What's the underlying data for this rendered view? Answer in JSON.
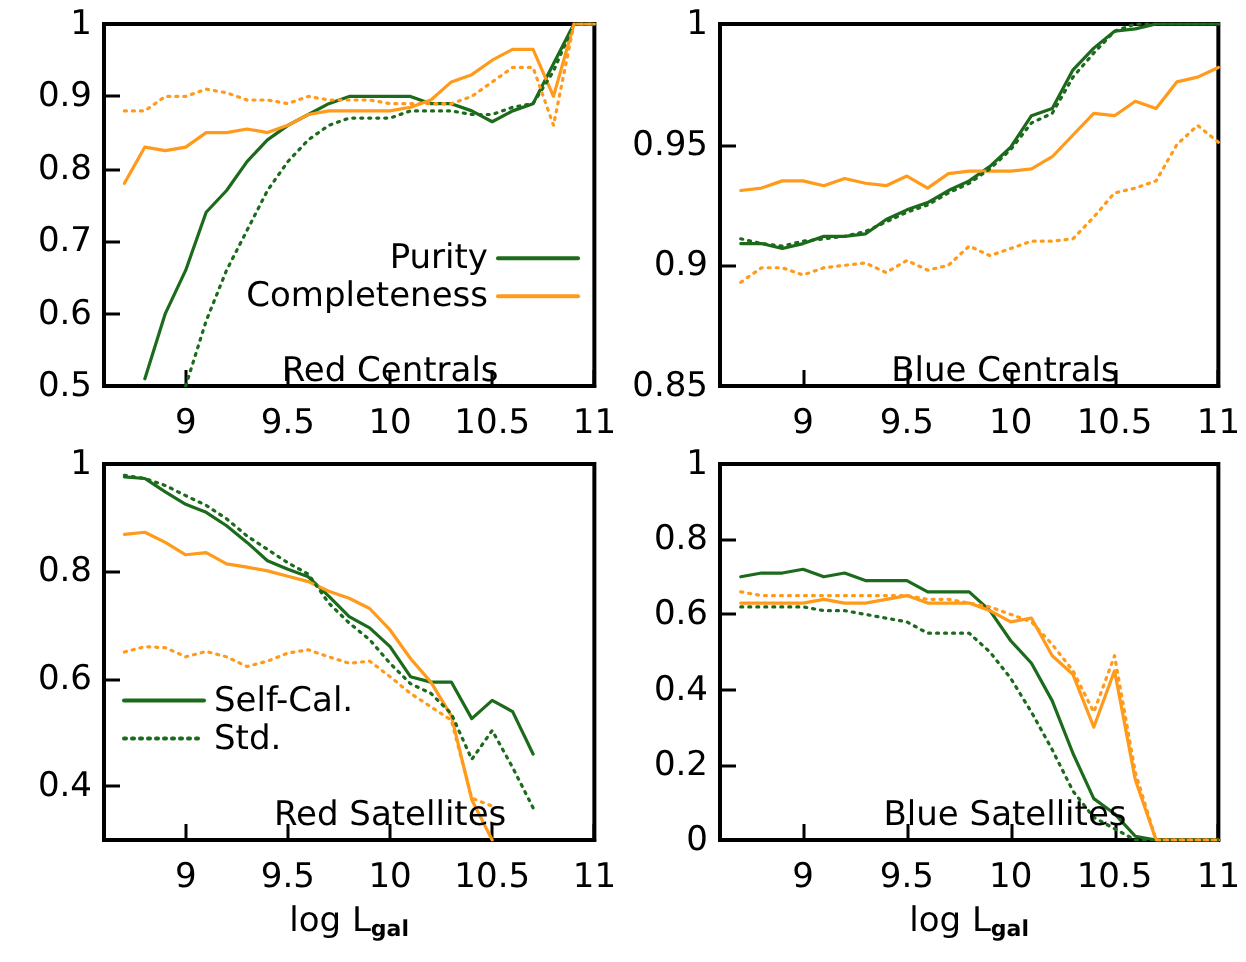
{
  "chart_data": [
    {
      "type": "line",
      "title": "Red Centrals",
      "x": [
        8.7,
        8.8,
        8.9,
        9.0,
        9.1,
        9.2,
        9.3,
        9.4,
        9.5,
        9.6,
        9.7,
        9.8,
        9.9,
        10.0,
        10.1,
        10.2,
        10.3,
        10.4,
        10.5,
        10.6,
        10.7,
        10.8,
        10.9,
        11.0
      ],
      "xlim": [
        8.6,
        11
      ],
      "xticks": [
        9,
        9.5,
        10,
        10.5,
        11
      ],
      "ylim": [
        0.5,
        1
      ],
      "yticks": [
        0.5,
        0.6,
        0.7,
        0.8,
        0.9,
        1
      ],
      "legend": "bottom right",
      "series": [
        {
          "name": "Purity",
          "color": "#1c6b1c",
          "line_style": "solid",
          "values": [
            null,
            0.51,
            0.6,
            0.66,
            0.74,
            0.77,
            0.81,
            0.84,
            0.86,
            0.875,
            0.89,
            0.9,
            0.9,
            0.9,
            0.9,
            0.89,
            0.89,
            0.88,
            0.865,
            0.88,
            0.89,
            0.945,
            1.0,
            1.0
          ]
        },
        {
          "name": "Completeness",
          "color": "#ff9a1a",
          "line_style": "solid",
          "values": [
            0.78,
            0.83,
            0.825,
            0.83,
            0.85,
            0.85,
            0.855,
            0.85,
            0.86,
            0.875,
            0.88,
            0.88,
            0.88,
            0.88,
            0.885,
            0.895,
            0.92,
            0.93,
            0.95,
            0.965,
            0.965,
            0.9,
            1.0,
            1.0
          ]
        },
        {
          "color": "#1c6b1c",
          "line_style": "dotted",
          "values": [
            null,
            null,
            null,
            0.5,
            0.59,
            0.66,
            0.715,
            0.77,
            0.81,
            0.84,
            0.86,
            0.87,
            0.87,
            0.87,
            0.88,
            0.88,
            0.88,
            0.875,
            0.875,
            0.885,
            0.89,
            0.935,
            1.0,
            1.0
          ]
        },
        {
          "color": "#ff9a1a",
          "line_style": "dotted",
          "values": [
            0.88,
            0.88,
            0.9,
            0.9,
            0.91,
            0.905,
            0.895,
            0.895,
            0.89,
            0.9,
            0.895,
            0.895,
            0.895,
            0.89,
            0.89,
            0.89,
            0.89,
            0.9,
            0.92,
            0.94,
            0.94,
            0.86,
            1.0,
            1.0
          ]
        }
      ]
    },
    {
      "type": "line",
      "title": "Blue Centrals",
      "x": [
        8.7,
        8.8,
        8.9,
        9.0,
        9.1,
        9.2,
        9.3,
        9.4,
        9.5,
        9.6,
        9.7,
        9.8,
        9.9,
        10.0,
        10.1,
        10.2,
        10.3,
        10.4,
        10.5,
        10.6,
        10.7,
        10.8,
        10.9,
        11.0
      ],
      "xlim": [
        8.6,
        11
      ],
      "xticks": [
        9,
        9.5,
        10,
        10.5,
        11
      ],
      "ylim": [
        0.85,
        1
      ],
      "yticks": [
        0.85,
        0.9,
        0.95,
        1
      ],
      "series": [
        {
          "color": "#1c6b1c",
          "line_style": "solid",
          "values": [
            0.909,
            0.909,
            0.907,
            0.909,
            0.912,
            0.912,
            0.913,
            0.919,
            0.923,
            0.926,
            0.931,
            0.935,
            0.941,
            0.949,
            0.962,
            0.965,
            0.981,
            0.99,
            0.997,
            0.998,
            1.0,
            1.0,
            1.0,
            1.0
          ]
        },
        {
          "color": "#ff9a1a",
          "line_style": "solid",
          "values": [
            0.931,
            0.932,
            0.935,
            0.935,
            0.933,
            0.936,
            0.934,
            0.933,
            0.937,
            0.932,
            0.938,
            0.939,
            0.939,
            0.939,
            0.94,
            0.945,
            0.954,
            0.963,
            0.962,
            0.968,
            0.965,
            0.976,
            0.978,
            0.982
          ]
        },
        {
          "color": "#1c6b1c",
          "line_style": "dotted",
          "values": [
            0.911,
            0.909,
            0.908,
            0.91,
            0.911,
            0.912,
            0.914,
            0.918,
            0.922,
            0.925,
            0.93,
            0.934,
            0.94,
            0.948,
            0.959,
            0.963,
            0.978,
            0.988,
            0.997,
            1.0,
            1.0,
            1.0,
            1.0,
            1.0
          ]
        },
        {
          "color": "#ff9a1a",
          "line_style": "dotted",
          "values": [
            0.893,
            0.899,
            0.899,
            0.896,
            0.899,
            0.9,
            0.901,
            0.897,
            0.902,
            0.898,
            0.9,
            0.908,
            0.904,
            0.907,
            0.91,
            0.91,
            0.911,
            0.92,
            0.93,
            0.932,
            0.935,
            0.95,
            0.958,
            0.951
          ]
        }
      ]
    },
    {
      "type": "line",
      "title": "Red Satellites",
      "xlabel": "log L$_{gal}$",
      "x": [
        8.7,
        8.8,
        8.9,
        9.0,
        9.1,
        9.2,
        9.3,
        9.4,
        9.5,
        9.6,
        9.7,
        9.8,
        9.9,
        10.0,
        10.1,
        10.2,
        10.3,
        10.4,
        10.5,
        10.6,
        10.7
      ],
      "xlim": [
        8.6,
        11
      ],
      "xticks": [
        9,
        9.5,
        10,
        10.5,
        11
      ],
      "ylim": [
        0.3,
        1
      ],
      "yticks": [
        0.4,
        0.6,
        0.8,
        1
      ],
      "legend": "bottom left",
      "series": [
        {
          "name": "Self-Cal.",
          "color": "#1c6b1c",
          "line_style": "solid",
          "values": [
            0.976,
            0.973,
            0.948,
            0.925,
            0.91,
            0.885,
            0.854,
            0.82,
            0.804,
            0.79,
            0.754,
            0.716,
            0.695,
            0.66,
            0.604,
            0.594,
            0.594,
            0.526,
            0.56,
            0.539,
            0.46
          ]
        },
        {
          "color": "#ff9a1a",
          "line_style": "solid",
          "values": [
            0.869,
            0.873,
            0.854,
            0.831,
            0.835,
            0.814,
            0.808,
            0.801,
            0.791,
            0.781,
            0.763,
            0.75,
            0.731,
            0.691,
            0.638,
            0.594,
            0.531,
            0.375,
            0.3,
            null,
            null
          ]
        },
        {
          "name": "Std.",
          "color": "#1c6b1c",
          "line_style": "dotted",
          "values": [
            0.979,
            0.973,
            0.96,
            0.941,
            0.923,
            0.898,
            0.866,
            0.841,
            0.816,
            0.795,
            0.741,
            0.704,
            0.673,
            0.629,
            0.591,
            0.573,
            0.535,
            0.45,
            0.504,
            0.435,
            0.36
          ]
        },
        {
          "color": "#ff9a1a",
          "line_style": "dotted",
          "values": [
            0.65,
            0.66,
            0.658,
            0.641,
            0.651,
            0.641,
            0.623,
            0.633,
            0.648,
            0.654,
            0.641,
            0.629,
            0.633,
            0.604,
            0.573,
            0.548,
            0.523,
            0.378,
            0.363,
            null,
            null
          ]
        }
      ]
    },
    {
      "type": "line",
      "title": "Blue Satellites",
      "xlabel": "log L$_{gal}$",
      "x": [
        8.7,
        8.8,
        8.9,
        9.0,
        9.1,
        9.2,
        9.3,
        9.4,
        9.5,
        9.6,
        9.7,
        9.8,
        9.9,
        10.0,
        10.1,
        10.2,
        10.3,
        10.4,
        10.5,
        10.6,
        10.7,
        10.8,
        10.9,
        11.0
      ],
      "xlim": [
        8.6,
        11
      ],
      "xticks": [
        9,
        9.5,
        10,
        10.5,
        11
      ],
      "ylim": [
        0,
        1
      ],
      "yticks": [
        0,
        0.2,
        0.4,
        0.6,
        0.8,
        1
      ],
      "series": [
        {
          "color": "#1c6b1c",
          "line_style": "solid",
          "values": [
            0.7,
            0.71,
            0.71,
            0.72,
            0.7,
            0.71,
            0.69,
            0.69,
            0.69,
            0.66,
            0.66,
            0.66,
            0.61,
            0.53,
            0.47,
            0.37,
            0.23,
            0.11,
            0.07,
            0.01,
            0,
            0,
            0,
            0
          ]
        },
        {
          "color": "#ff9a1a",
          "line_style": "solid",
          "values": [
            0.63,
            0.63,
            0.63,
            0.63,
            0.64,
            0.63,
            0.63,
            0.64,
            0.65,
            0.63,
            0.63,
            0.63,
            0.61,
            0.58,
            0.59,
            0.49,
            0.44,
            0.3,
            0.45,
            0.16,
            0,
            0,
            0,
            0
          ]
        },
        {
          "color": "#1c6b1c",
          "line_style": "dotted",
          "values": [
            0.62,
            0.62,
            0.62,
            0.62,
            0.61,
            0.61,
            0.6,
            0.59,
            0.58,
            0.55,
            0.55,
            0.55,
            0.5,
            0.43,
            0.34,
            0.24,
            0.13,
            0.06,
            0.03,
            0,
            0,
            0,
            0,
            0
          ]
        },
        {
          "color": "#ff9a1a",
          "line_style": "dotted",
          "values": [
            0.66,
            0.65,
            0.65,
            0.65,
            0.65,
            0.65,
            0.65,
            0.65,
            0.65,
            0.64,
            0.64,
            0.63,
            0.62,
            0.6,
            0.58,
            0.52,
            0.45,
            0.34,
            0.49,
            0.18,
            0,
            0,
            0,
            0
          ]
        }
      ]
    }
  ]
}
